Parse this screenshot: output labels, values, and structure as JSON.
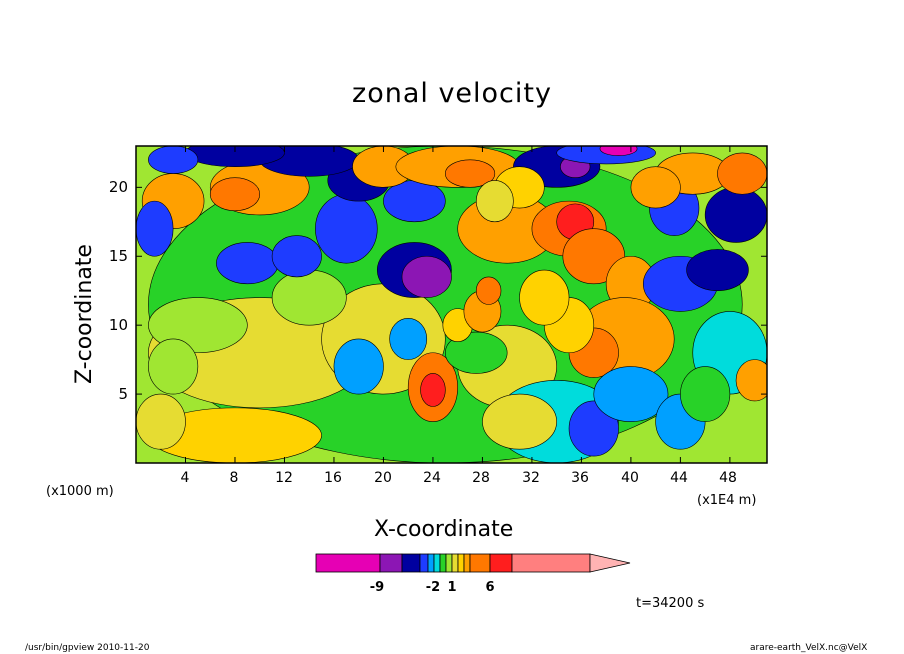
{
  "figure": {
    "title": "zonal velocity",
    "time_label": "t=34200 s",
    "footer_left": "/usr/bin/gpview   2010-11-20",
    "footer_right": "arare-earth_VelX.nc@VelX"
  },
  "chart_data": {
    "type": "heatmap",
    "title": "zonal velocity",
    "xlabel": "X-coordinate",
    "ylabel": "Z-coordinate",
    "x_unit_label": "(x1000 m)",
    "x_scale_label": "(x1E4 m)",
    "xlim": [
      0,
      51
    ],
    "ylim": [
      0,
      23
    ],
    "x_ticks": [
      "4",
      "8",
      "12",
      "16",
      "20",
      "24",
      "28",
      "32",
      "36",
      "40",
      "44",
      "48"
    ],
    "y_ticks": [
      "5",
      "10",
      "15",
      "20"
    ],
    "colorbar": {
      "labels": [
        "-9",
        "-2",
        "1",
        "6"
      ],
      "colors": [
        "#e600b4",
        "#8c16b4",
        "#0000a0",
        "#1e3cff",
        "#00a0ff",
        "#00dcdc",
        "#28d228",
        "#a0e632",
        "#e6dc32",
        "#ffd200",
        "#ffa000",
        "#ff7800",
        "#ff1e1e",
        "#ff7f7f",
        "#ffb3b3"
      ]
    }
  }
}
